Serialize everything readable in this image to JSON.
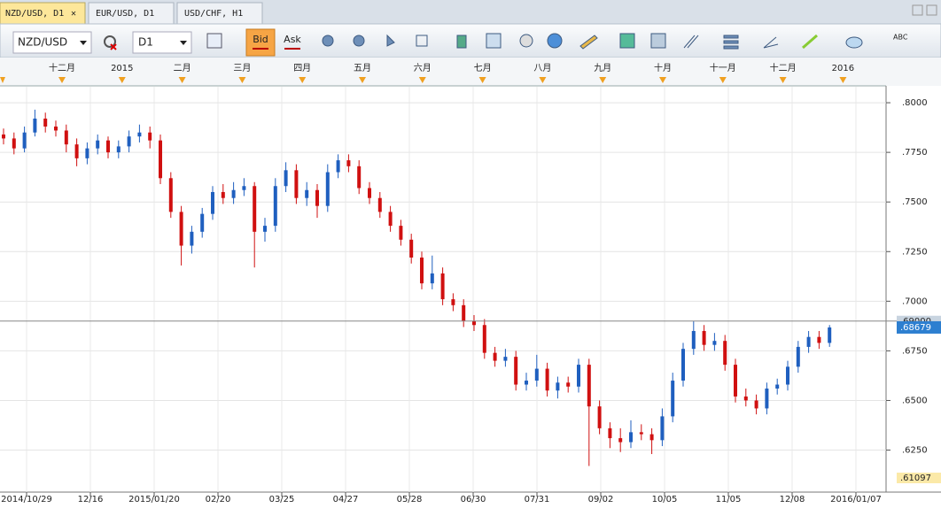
{
  "tabs": [
    "NZD/USD, D1",
    "EUR/USD, D1",
    "USD/CHF, H1"
  ],
  "toolbar": {
    "symbol": "NZD/USD",
    "timeframe": "D1",
    "bid": "Bid",
    "ask": "Ask",
    "text_tool": "ABC"
  },
  "chart_data": {
    "type": "candlestick",
    "up_color": "#1f5fbf",
    "down_color": "#d01010",
    "grid": true,
    "ylim": [
      0.61097,
      0.8085
    ],
    "yticks": [
      {
        "value": 0.8,
        "label": ".8000"
      },
      {
        "value": 0.775,
        "label": ".7750"
      },
      {
        "value": 0.75,
        "label": ".7500"
      },
      {
        "value": 0.725,
        "label": ".7250"
      },
      {
        "value": 0.7,
        "label": ".7000"
      },
      {
        "value": 0.675,
        "label": ".6750"
      },
      {
        "value": 0.65,
        "label": ".6500"
      },
      {
        "value": 0.625,
        "label": ".6250"
      }
    ],
    "reference_line": {
      "value": 0.69,
      "label": ".69000"
    },
    "last_price": {
      "value": 0.68679,
      "label": ".68679"
    },
    "bottom_price": {
      "value": 0.61097,
      "label": ".61097"
    },
    "month_labels": [
      "十二月",
      "2015",
      "二月",
      "三月",
      "四月",
      "五月",
      "六月",
      "七月",
      "八月",
      "九月",
      "十月",
      "十一月",
      "十二月",
      "2016"
    ],
    "x_labels": [
      "2014/10/29",
      "12/16",
      "2015/01/20",
      "02/20",
      "03/25",
      "04/27",
      "05/28",
      "06/30",
      "07/31",
      "09/02",
      "10/05",
      "11/05",
      "12/08",
      "2016/01/07"
    ],
    "candles": [
      [
        0.784,
        0.787,
        0.779,
        0.782
      ],
      [
        0.782,
        0.785,
        0.774,
        0.777
      ],
      [
        0.777,
        0.788,
        0.775,
        0.785
      ],
      [
        0.785,
        0.7965,
        0.783,
        0.792
      ],
      [
        0.792,
        0.795,
        0.785,
        0.788
      ],
      [
        0.788,
        0.791,
        0.783,
        0.786
      ],
      [
        0.786,
        0.789,
        0.775,
        0.779
      ],
      [
        0.779,
        0.782,
        0.768,
        0.772
      ],
      [
        0.772,
        0.78,
        0.769,
        0.777
      ],
      [
        0.777,
        0.784,
        0.774,
        0.781
      ],
      [
        0.781,
        0.783,
        0.772,
        0.775
      ],
      [
        0.775,
        0.781,
        0.772,
        0.778
      ],
      [
        0.778,
        0.786,
        0.775,
        0.783
      ],
      [
        0.783,
        0.789,
        0.78,
        0.785
      ],
      [
        0.785,
        0.788,
        0.777,
        0.781
      ],
      [
        0.781,
        0.784,
        0.759,
        0.762
      ],
      [
        0.762,
        0.765,
        0.742,
        0.745
      ],
      [
        0.745,
        0.748,
        0.718,
        0.728
      ],
      [
        0.728,
        0.738,
        0.724,
        0.735
      ],
      [
        0.735,
        0.747,
        0.732,
        0.744
      ],
      [
        0.744,
        0.758,
        0.741,
        0.755
      ],
      [
        0.755,
        0.759,
        0.749,
        0.752
      ],
      [
        0.752,
        0.76,
        0.749,
        0.756
      ],
      [
        0.756,
        0.762,
        0.753,
        0.758
      ],
      [
        0.758,
        0.76,
        0.717,
        0.735
      ],
      [
        0.735,
        0.742,
        0.73,
        0.738
      ],
      [
        0.738,
        0.762,
        0.735,
        0.758
      ],
      [
        0.758,
        0.77,
        0.755,
        0.766
      ],
      [
        0.766,
        0.769,
        0.749,
        0.752
      ],
      [
        0.752,
        0.76,
        0.748,
        0.756
      ],
      [
        0.756,
        0.759,
        0.742,
        0.748
      ],
      [
        0.748,
        0.769,
        0.745,
        0.765
      ],
      [
        0.765,
        0.774,
        0.762,
        0.771
      ],
      [
        0.771,
        0.774,
        0.765,
        0.768
      ],
      [
        0.768,
        0.771,
        0.754,
        0.757
      ],
      [
        0.757,
        0.76,
        0.749,
        0.752
      ],
      [
        0.752,
        0.755,
        0.742,
        0.745
      ],
      [
        0.745,
        0.748,
        0.735,
        0.738
      ],
      [
        0.738,
        0.741,
        0.728,
        0.731
      ],
      [
        0.731,
        0.734,
        0.719,
        0.722
      ],
      [
        0.722,
        0.725,
        0.706,
        0.709
      ],
      [
        0.709,
        0.723,
        0.706,
        0.714
      ],
      [
        0.714,
        0.717,
        0.698,
        0.701
      ],
      [
        0.701,
        0.704,
        0.695,
        0.698
      ],
      [
        0.698,
        0.701,
        0.687,
        0.69
      ],
      [
        0.69,
        0.693,
        0.685,
        0.688
      ],
      [
        0.688,
        0.691,
        0.671,
        0.674
      ],
      [
        0.674,
        0.677,
        0.667,
        0.67
      ],
      [
        0.67,
        0.676,
        0.667,
        0.672
      ],
      [
        0.672,
        0.675,
        0.655,
        0.658
      ],
      [
        0.658,
        0.664,
        0.655,
        0.66
      ],
      [
        0.66,
        0.673,
        0.657,
        0.666
      ],
      [
        0.666,
        0.669,
        0.652,
        0.655
      ],
      [
        0.655,
        0.662,
        0.651,
        0.659
      ],
      [
        0.659,
        0.662,
        0.654,
        0.657
      ],
      [
        0.657,
        0.671,
        0.654,
        0.668
      ],
      [
        0.668,
        0.671,
        0.617,
        0.647
      ],
      [
        0.647,
        0.65,
        0.633,
        0.636
      ],
      [
        0.636,
        0.639,
        0.626,
        0.631
      ],
      [
        0.631,
        0.636,
        0.624,
        0.629
      ],
      [
        0.629,
        0.64,
        0.626,
        0.634
      ],
      [
        0.634,
        0.638,
        0.63,
        0.633
      ],
      [
        0.633,
        0.636,
        0.623,
        0.63
      ],
      [
        0.63,
        0.646,
        0.627,
        0.642
      ],
      [
        0.642,
        0.664,
        0.639,
        0.66
      ],
      [
        0.66,
        0.679,
        0.657,
        0.676
      ],
      [
        0.676,
        0.69,
        0.673,
        0.685
      ],
      [
        0.685,
        0.688,
        0.675,
        0.678
      ],
      [
        0.678,
        0.684,
        0.675,
        0.68
      ],
      [
        0.68,
        0.683,
        0.665,
        0.668
      ],
      [
        0.668,
        0.671,
        0.649,
        0.652
      ],
      [
        0.652,
        0.656,
        0.647,
        0.65
      ],
      [
        0.65,
        0.653,
        0.643,
        0.646
      ],
      [
        0.646,
        0.659,
        0.643,
        0.656
      ],
      [
        0.656,
        0.661,
        0.653,
        0.658
      ],
      [
        0.658,
        0.67,
        0.655,
        0.667
      ],
      [
        0.667,
        0.68,
        0.664,
        0.677
      ],
      [
        0.677,
        0.685,
        0.674,
        0.682
      ],
      [
        0.682,
        0.685,
        0.676,
        0.679
      ],
      [
        0.679,
        0.688,
        0.677,
        0.68679
      ]
    ]
  }
}
